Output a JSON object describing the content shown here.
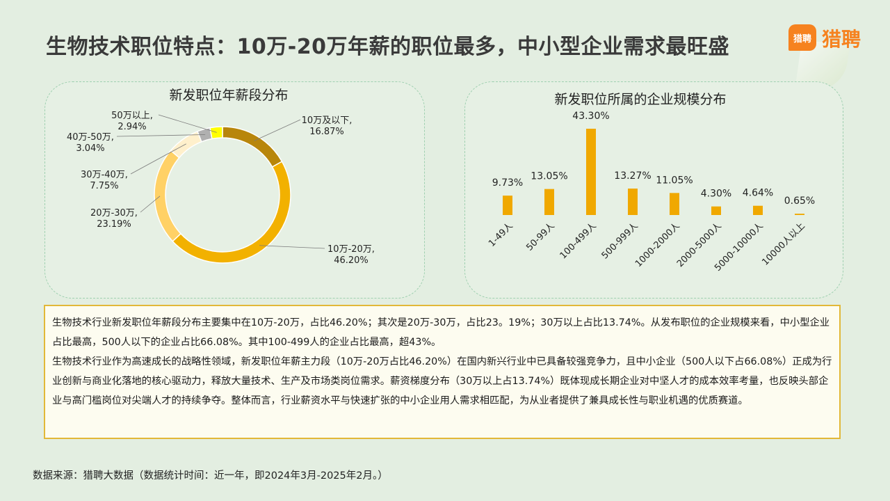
{
  "page": {
    "title": "生物技术职位特点：10万-20万年薪的职位最多，中小型企业需求最旺盛",
    "logo_icon_text": "猎聘",
    "logo_text": "猎聘",
    "paragraph1": "生物技术行业新发职位年薪段分布主要集中在10万-20万，占比46.20%；其次是20万-30万，占比23。19%；30万以上占比13.74%。从发布职位的企业规模来看，中小型企业占比最高，500人以下的企业占比66.08%。其中100-499人的企业占比最高，超43%。",
    "paragraph2": "生物技术行业作为高速成长的战略性领域，新发职位年薪主力段（10万-20万占比46.20%）在国内新兴行业中已具备较强竞争力，且中小企业（500人以下占66.08%）正成为行业创新与商业化落地的核心驱动力，释放大量技术、生产及市场类岗位需求。薪资梯度分布（30万以上占13.74%）既体现成长期企业对中坚人才的成本效率考量，也反映头部企业与高门槛岗位对尖端人才的持续争夺。整体而言，行业薪资水平与快速扩张的中小企业用人需求相匹配，为从业者提供了兼具成长性与职业机遇的优质赛道。",
    "source": "数据来源：猎聘大数据（数据统计时间：近一年，即2024年3月-2025年2月。）"
  },
  "colors": {
    "background": "#e3eee1",
    "bar": "#f0a800",
    "panel_border": "#9fd0b0",
    "textbox_border": "#e2b838",
    "brand": "#f6821f"
  },
  "chart_data": [
    {
      "type": "pie",
      "variant": "donut",
      "title": "新发职位年薪段分布",
      "slices": [
        {
          "label_lines": [
            "10万及以下,",
            "16.87%"
          ],
          "value": 16.87,
          "color": "#b8860b"
        },
        {
          "label_lines": [
            "10万-20万,",
            "46.20%"
          ],
          "value": 46.2,
          "color": "#f2b100"
        },
        {
          "label_lines": [
            "20万-30万,",
            "23.19%"
          ],
          "value": 23.19,
          "color": "#ffd166"
        },
        {
          "label_lines": [
            "30万-40万,",
            "7.75%"
          ],
          "value": 7.75,
          "color": "#fff0cc"
        },
        {
          "label_lines": [
            "40万-50万,",
            "3.04%"
          ],
          "value": 3.04,
          "color": "#b0b0b0"
        },
        {
          "label_lines": [
            "50万以上,",
            "2.94%"
          ],
          "value": 2.94,
          "color": "#ffff00"
        }
      ]
    },
    {
      "type": "bar",
      "title": "新发职位所属的企业规模分布",
      "categories": [
        "1-49人",
        "50-99人",
        "100-499人",
        "500-999人",
        "1000-2000人",
        "2000-5000人",
        "5000-10000人",
        "10000人以上"
      ],
      "values": [
        9.73,
        13.05,
        43.3,
        13.27,
        11.05,
        4.3,
        4.64,
        0.65
      ],
      "value_labels": [
        "9.73%",
        "13.05%",
        "43.30%",
        "13.27%",
        "11.05%",
        "4.30%",
        "4.64%",
        "0.65%"
      ],
      "grid": false
    }
  ]
}
